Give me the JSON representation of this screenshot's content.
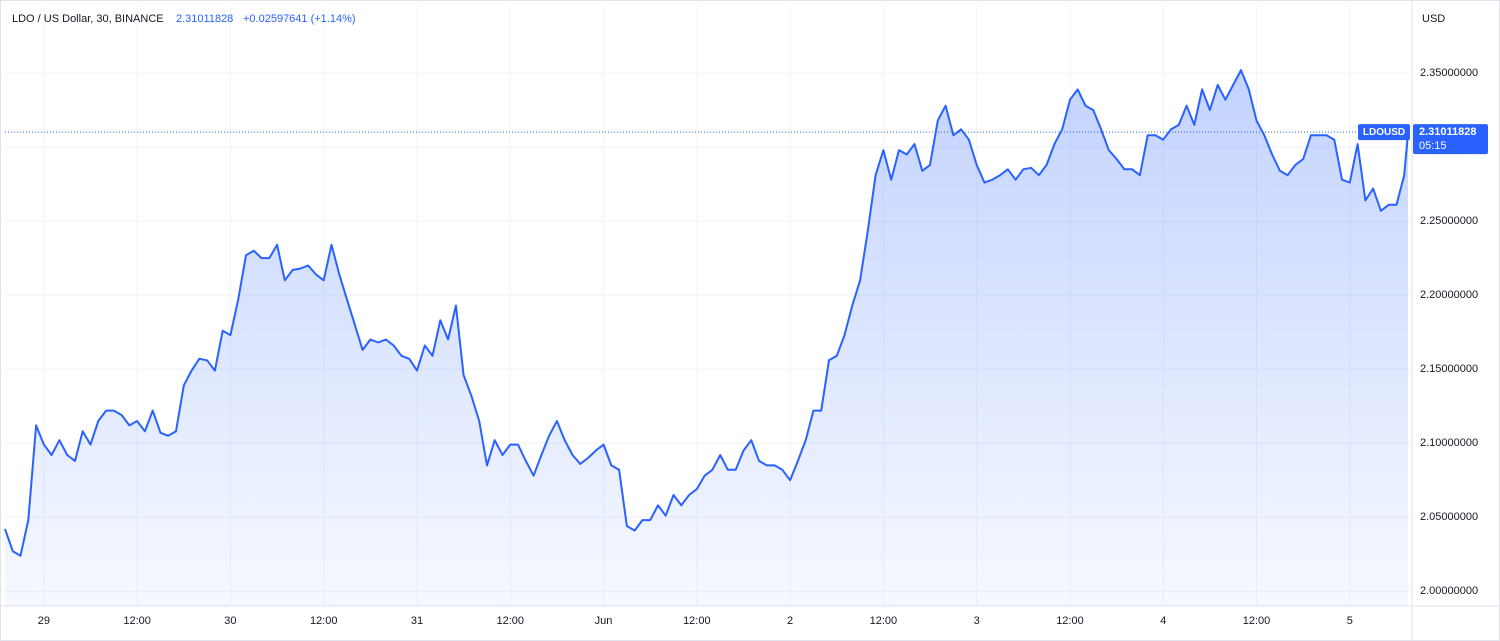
{
  "chart_data": {
    "type": "area",
    "title": "LDO / US Dollar, 30, BINANCE",
    "last_price": 2.31011828,
    "change": "+0.02597641 (+1.14%)",
    "currency": "USD",
    "countdown": "05:15",
    "x": [
      -5,
      -4,
      -3,
      -2,
      -1,
      0,
      1,
      2,
      3,
      4,
      5,
      6,
      7,
      8,
      9,
      10,
      11,
      12,
      13,
      14,
      15,
      16,
      17,
      18,
      19,
      20,
      21,
      22,
      23,
      24,
      25,
      26,
      27,
      28,
      29,
      30,
      31,
      32,
      33,
      34,
      35,
      36,
      37,
      38,
      39,
      40,
      41,
      42,
      43,
      44,
      45,
      46,
      47,
      48,
      49,
      50,
      51,
      52,
      53,
      54,
      55,
      56,
      57,
      58,
      59,
      60,
      61,
      62,
      63,
      64,
      65,
      66,
      67,
      68,
      69,
      70,
      71,
      72,
      73,
      74,
      75,
      76,
      77,
      78,
      79,
      80,
      81,
      82,
      83,
      84,
      85,
      86,
      87,
      88,
      89,
      90,
      91,
      92,
      93,
      94,
      95,
      96,
      97,
      98,
      99,
      100,
      101,
      102,
      103,
      104,
      105,
      106,
      107,
      108,
      109,
      110,
      111,
      112,
      113,
      114,
      115,
      116,
      117,
      118,
      119,
      120,
      121,
      122,
      123,
      124,
      125,
      126,
      127,
      128,
      129,
      130,
      131,
      132,
      133,
      134,
      135,
      136,
      137,
      138,
      139,
      140,
      141,
      142,
      143,
      144,
      145,
      146,
      147,
      148,
      149,
      150,
      151,
      152,
      153,
      154,
      155,
      156,
      157,
      158,
      159,
      160,
      161,
      162,
      163,
      164,
      165,
      166,
      167,
      168,
      169,
      170,
      171,
      172,
      173,
      174,
      175,
      175.5
    ],
    "series": [
      {
        "name": "LDOUSD",
        "color": "#2962ff",
        "values": [
          2.042,
          2.027,
          2.024,
          2.048,
          2.112,
          2.099,
          2.092,
          2.102,
          2.092,
          2.088,
          2.108,
          2.099,
          2.115,
          2.122,
          2.122,
          2.119,
          2.112,
          2.115,
          2.108,
          2.122,
          2.107,
          2.105,
          2.108,
          2.139,
          2.149,
          2.157,
          2.156,
          2.149,
          2.176,
          2.173,
          2.197,
          2.227,
          2.23,
          2.225,
          2.225,
          2.234,
          2.21,
          2.217,
          2.218,
          2.22,
          2.214,
          2.21,
          2.234,
          2.214,
          2.197,
          2.18,
          2.163,
          2.17,
          2.168,
          2.17,
          2.166,
          2.159,
          2.157,
          2.149,
          2.166,
          2.159,
          2.183,
          2.17,
          2.193,
          2.146,
          2.132,
          2.115,
          2.085,
          2.102,
          2.092,
          2.099,
          2.099,
          2.088,
          2.078,
          2.092,
          2.105,
          2.115,
          2.102,
          2.092,
          2.086,
          2.09,
          2.095,
          2.099,
          2.085,
          2.082,
          2.044,
          2.041,
          2.048,
          2.048,
          2.058,
          2.051,
          2.065,
          2.058,
          2.065,
          2.069,
          2.078,
          2.082,
          2.092,
          2.082,
          2.082,
          2.095,
          2.102,
          2.088,
          2.085,
          2.085,
          2.082,
          2.075,
          2.088,
          2.102,
          2.122,
          2.122,
          2.156,
          2.159,
          2.173,
          2.193,
          2.21,
          2.244,
          2.281,
          2.298,
          2.278,
          2.298,
          2.295,
          2.302,
          2.284,
          2.288,
          2.318,
          2.328,
          2.308,
          2.312,
          2.305,
          2.288,
          2.276,
          2.278,
          2.281,
          2.285,
          2.278,
          2.285,
          2.286,
          2.281,
          2.288,
          2.302,
          2.312,
          2.332,
          2.339,
          2.328,
          2.325,
          2.312,
          2.298,
          2.292,
          2.285,
          2.285,
          2.281,
          2.308,
          2.308,
          2.305,
          2.312,
          2.315,
          2.328,
          2.315,
          2.339,
          2.325,
          2.342,
          2.332,
          2.342,
          2.352,
          2.339,
          2.318,
          2.308,
          2.295,
          2.284,
          2.281,
          2.288,
          2.292,
          2.308,
          2.308,
          2.308,
          2.305,
          2.278,
          2.276,
          2.302,
          2.264,
          2.272,
          2.257,
          2.261,
          2.261,
          2.281,
          2.31011828
        ]
      }
    ],
    "xlim": [
      -5,
      176
    ],
    "ylim": [
      1.99,
      2.396
    ],
    "xticks": [
      {
        "value": 0,
        "label": "29"
      },
      {
        "value": 12,
        "label": "12:00"
      },
      {
        "value": 24,
        "label": "30"
      },
      {
        "value": 36,
        "label": "12:00"
      },
      {
        "value": 48,
        "label": "31"
      },
      {
        "value": 60,
        "label": "12:00"
      },
      {
        "value": 72,
        "label": "Jun"
      },
      {
        "value": 84,
        "label": "12:00"
      },
      {
        "value": 96,
        "label": "2"
      },
      {
        "value": 108,
        "label": "12:00"
      },
      {
        "value": 120,
        "label": "3"
      },
      {
        "value": 132,
        "label": "12:00"
      },
      {
        "value": 144,
        "label": "4"
      },
      {
        "value": 156,
        "label": "12:00"
      },
      {
        "value": 168,
        "label": "5"
      }
    ],
    "yticks": [
      {
        "value": 2.0,
        "label": "2.00000000"
      },
      {
        "value": 2.05,
        "label": "2.05000000"
      },
      {
        "value": 2.1,
        "label": "2.10000000"
      },
      {
        "value": 2.15,
        "label": "2.15000000"
      },
      {
        "value": 2.2,
        "label": "2.20000000"
      },
      {
        "value": 2.25,
        "label": "2.25000000"
      },
      {
        "value": 2.3,
        "label": "2.30000000"
      },
      {
        "value": 2.35,
        "label": "2.35000000"
      }
    ],
    "grid": true
  }
}
